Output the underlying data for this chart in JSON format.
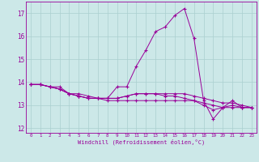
{
  "xlabel": "Windchill (Refroidissement éolien,°C)",
  "background_color": "#cce8e8",
  "grid_color": "#aacfcf",
  "line_color": "#990099",
  "xlim": [
    -0.5,
    23.5
  ],
  "ylim": [
    11.8,
    17.5
  ],
  "yticks": [
    12,
    13,
    14,
    15,
    16,
    17
  ],
  "xticks": [
    0,
    1,
    2,
    3,
    4,
    5,
    6,
    7,
    8,
    9,
    10,
    11,
    12,
    13,
    14,
    15,
    16,
    17,
    18,
    19,
    20,
    21,
    22,
    23
  ],
  "series": [
    [
      13.9,
      13.9,
      13.8,
      13.8,
      13.5,
      13.5,
      13.4,
      13.3,
      13.3,
      13.8,
      13.8,
      14.7,
      15.4,
      16.2,
      16.4,
      16.9,
      17.2,
      15.9,
      13.2,
      12.4,
      12.9,
      13.2,
      12.9,
      12.9
    ],
    [
      13.9,
      13.9,
      13.8,
      13.7,
      13.5,
      13.4,
      13.3,
      13.3,
      13.3,
      13.3,
      13.4,
      13.5,
      13.5,
      13.5,
      13.4,
      13.4,
      13.3,
      13.2,
      13.1,
      13.0,
      12.9,
      12.9,
      12.9,
      12.9
    ],
    [
      13.9,
      13.9,
      13.8,
      13.7,
      13.5,
      13.4,
      13.3,
      13.3,
      13.3,
      13.3,
      13.4,
      13.5,
      13.5,
      13.5,
      13.5,
      13.5,
      13.5,
      13.4,
      13.3,
      13.2,
      13.1,
      13.1,
      13.0,
      12.9
    ],
    [
      13.9,
      13.9,
      13.8,
      13.7,
      13.5,
      13.4,
      13.3,
      13.3,
      13.2,
      13.2,
      13.2,
      13.2,
      13.2,
      13.2,
      13.2,
      13.2,
      13.2,
      13.2,
      13.0,
      12.8,
      12.9,
      13.0,
      12.9,
      12.9
    ]
  ]
}
